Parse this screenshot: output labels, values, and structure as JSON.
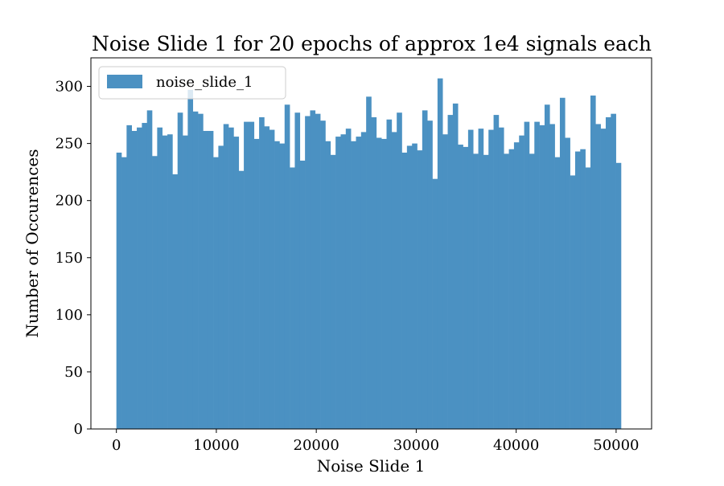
{
  "chart_data": {
    "type": "bar",
    "title": "Noise Slide 1 for 20 epochs of approx 1e4 signals each",
    "xlabel": "Noise Slide 1",
    "ylabel": "Number of Occurences",
    "xlim": [
      -2550,
      53550
    ],
    "ylim": [
      0,
      325
    ],
    "xticks": [
      0,
      10000,
      20000,
      30000,
      40000,
      50000
    ],
    "xtick_labels": [
      "0",
      "10000",
      "20000",
      "30000",
      "40000",
      "50000"
    ],
    "yticks": [
      0,
      50,
      100,
      150,
      200,
      250,
      300
    ],
    "ytick_labels": [
      "0",
      "50",
      "100",
      "150",
      "200",
      "250",
      "300"
    ],
    "grid": false,
    "legend_position": "top-left",
    "bin_start": 0,
    "bin_width": 510,
    "series": [
      {
        "name": "noise_slide_1",
        "color": "#4b91c2",
        "values": [
          242,
          238,
          266,
          261,
          264,
          268,
          279,
          239,
          264,
          257,
          258,
          223,
          277,
          257,
          297,
          278,
          276,
          261,
          261,
          238,
          248,
          267,
          264,
          256,
          226,
          269,
          269,
          254,
          273,
          265,
          262,
          252,
          250,
          284,
          229,
          277,
          235,
          274,
          279,
          276,
          270,
          252,
          240,
          256,
          258,
          263,
          252,
          256,
          260,
          291,
          273,
          255,
          254,
          271,
          260,
          277,
          242,
          248,
          250,
          244,
          279,
          270,
          219,
          307,
          258,
          275,
          285,
          249,
          247,
          262,
          241,
          263,
          240,
          262,
          275,
          264,
          241,
          245,
          251,
          257,
          269,
          241,
          269,
          266,
          284,
          267,
          238,
          290,
          255,
          222,
          243,
          245,
          229,
          292,
          267,
          263,
          273,
          276,
          233
        ]
      }
    ]
  }
}
